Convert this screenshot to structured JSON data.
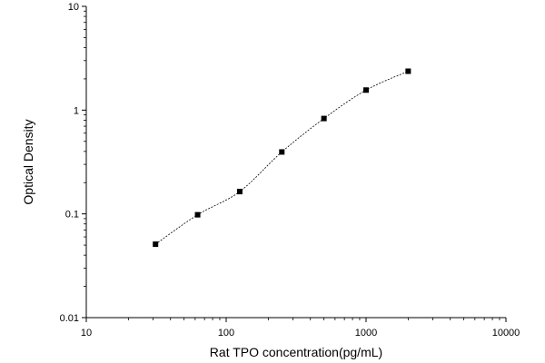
{
  "chart_data": {
    "type": "scatter",
    "scale": {
      "x": "log",
      "y": "log"
    },
    "xlim": [
      10,
      10000
    ],
    "ylim": [
      0.01,
      10
    ],
    "xlabel": "Rat TPO concentration(pg/mL)",
    "ylabel": "Optical Density",
    "grid": false,
    "legend": "none",
    "xticks": [
      10,
      100,
      1000,
      10000
    ],
    "xtick_labels": [
      "10",
      "100",
      "1000",
      "10000"
    ],
    "yticks": [
      0.01,
      0.1,
      1,
      10
    ],
    "ytick_labels": [
      "0.01",
      "0.1",
      "1",
      "10"
    ],
    "series": [
      {
        "x": [
          31.25,
          62.5,
          125,
          250,
          500,
          1000,
          2000
        ],
        "y": [
          0.051,
          0.098,
          0.164,
          0.395,
          0.83,
          1.56,
          2.37
        ],
        "marker": "square",
        "fit_curve": "dashed"
      }
    ],
    "colors": {
      "marker": "#000000",
      "curve": "#000000",
      "axis": "#000000"
    }
  }
}
